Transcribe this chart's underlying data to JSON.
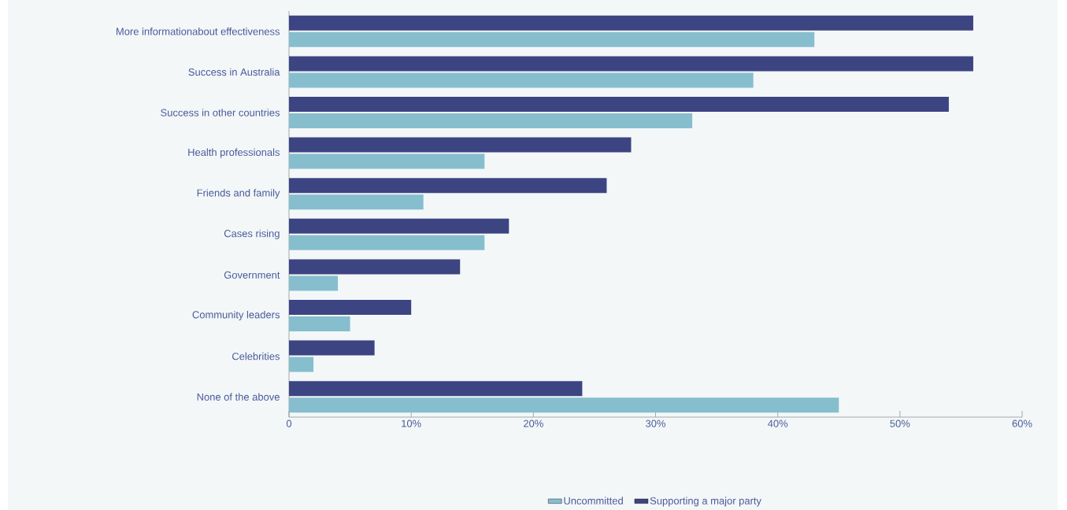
{
  "chart_data": {
    "type": "bar",
    "orientation": "horizontal",
    "categories": [
      "More informationabout effectiveness",
      "Success in Australia",
      "Success in other countries",
      "Health professionals",
      "Friends and family",
      "Cases rising",
      "Government",
      "Community leaders",
      "Celebrities",
      "None of the above"
    ],
    "series": [
      {
        "name": "Uncommitted",
        "color": "#86bece",
        "values": [
          43,
          38,
          33,
          16,
          11,
          16,
          4,
          5,
          2,
          45
        ]
      },
      {
        "name": "Supporting a major party",
        "color": "#3c4482",
        "values": [
          56,
          56,
          54,
          28,
          26,
          18,
          14,
          10,
          7,
          24
        ]
      }
    ],
    "xlim": [
      0,
      60
    ],
    "xticks": [
      {
        "value": 0,
        "label": "0"
      },
      {
        "value": 10,
        "label": "10%"
      },
      {
        "value": 20,
        "label": "20%"
      },
      {
        "value": 30,
        "label": "30%"
      },
      {
        "value": 40,
        "label": "40%"
      },
      {
        "value": 50,
        "label": "50%"
      },
      {
        "value": 60,
        "label": "60%"
      }
    ],
    "grid": false,
    "legend": "bottom"
  }
}
